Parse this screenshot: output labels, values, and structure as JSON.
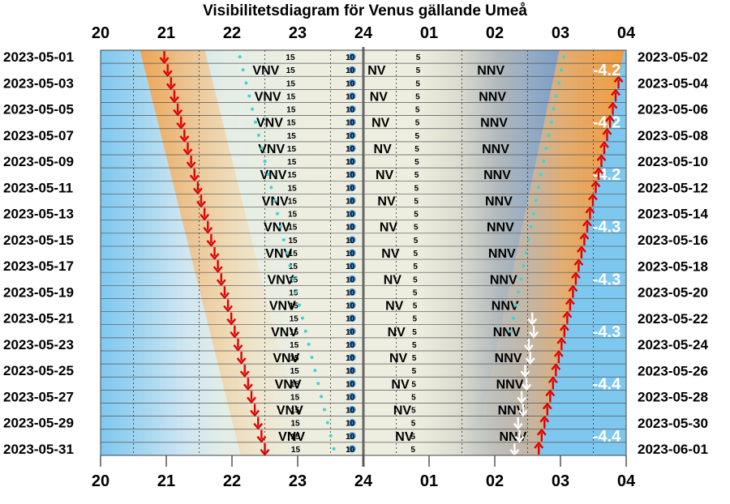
{
  "chart_data": {
    "type": "visibility-diagram",
    "title": "Visibilitetsdiagram för Venus gällande Umeå",
    "x_ticks": [
      "20",
      "21",
      "22",
      "23",
      "24",
      "01",
      "02",
      "03",
      "04"
    ],
    "x_range_hours": [
      20,
      28
    ],
    "left_dates": [
      "2023-05-01",
      "2023-05-03",
      "2023-05-05",
      "2023-05-07",
      "2023-05-09",
      "2023-05-11",
      "2023-05-13",
      "2023-05-15",
      "2023-05-17",
      "2023-05-19",
      "2023-05-21",
      "2023-05-23",
      "2023-05-25",
      "2023-05-27",
      "2023-05-29",
      "2023-05-31"
    ],
    "right_dates": [
      "2023-05-02",
      "2023-05-04",
      "2023-05-06",
      "2023-05-08",
      "2023-05-10",
      "2023-05-12",
      "2023-05-14",
      "2023-05-16",
      "2023-05-18",
      "2023-05-20",
      "2023-05-22",
      "2023-05-24",
      "2023-05-26",
      "2023-05-28",
      "2023-05-30",
      "2023-06-01"
    ],
    "rows": 31,
    "venus_set_hour": {
      "start": 20.97,
      "end": 22.5
    },
    "sunrise_hour": {
      "start": 27.97,
      "end": 26.67
    },
    "moon_rise_hour": {
      "start": 26.62,
      "end": 26.35,
      "first_row": 20
    },
    "direction_labels": [
      {
        "text": "VNV",
        "start": 22.3,
        "end": 22.72
      },
      {
        "text": "NV",
        "start": 24.05,
        "end": 24.5
      },
      {
        "text": "NNV",
        "start": 25.72,
        "end": 26.08
      }
    ],
    "altitude_labels": [
      {
        "text": "15",
        "start": 22.82,
        "end": 22.9
      },
      {
        "text": "10",
        "start": 23.73,
        "end": 23.73
      },
      {
        "text": "5",
        "start": 24.8,
        "end": 24.72
      }
    ],
    "magnitude_labels": [
      {
        "text": "-4.2",
        "row": 1
      },
      {
        "text": "-4.2",
        "row": 5
      },
      {
        "text": "-4.2",
        "row": 9
      },
      {
        "text": "-4.3",
        "row": 13
      },
      {
        "text": "-4.3",
        "row": 17
      },
      {
        "text": "-4.3",
        "row": 21
      },
      {
        "text": "-4.4",
        "row": 25
      },
      {
        "text": "-4.4",
        "row": 29
      }
    ],
    "colors": {
      "day_sky": "#7ec8f0",
      "twilight_light": "#cfe6f2",
      "twilight_pale": "#e8f0e8",
      "night": "#eeeee0",
      "venus_glow": "#f4a24a",
      "moon_band": "#6f93c8",
      "set_arrow": "#e00000",
      "rise_arrow": "#e00000",
      "moon_arrow": "#ffffff",
      "dots": "#3fd3d8"
    }
  }
}
